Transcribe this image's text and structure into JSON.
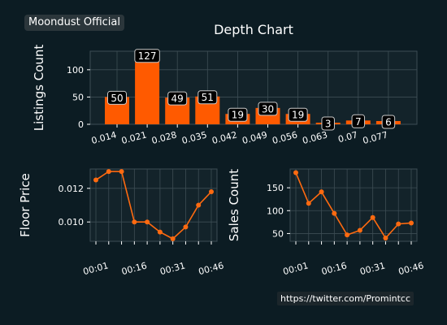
{
  "brand": {
    "label": "Moondust Official"
  },
  "footer": {
    "link": "https://twitter.com/Promintcc"
  },
  "colors": {
    "background": "#0c1c23",
    "panel": "#13232a",
    "accent": "#ff5a00",
    "line": "#ff6a10",
    "grid": "#3d4d54",
    "text": "#ffffff"
  },
  "chart_data": [
    {
      "type": "bar",
      "title": "Depth Chart",
      "ylabel": "Listings Count",
      "xlabel": "",
      "categories": [
        "0.014",
        "0.021",
        "0.028",
        "0.035",
        "0.042",
        "0.049",
        "0.056",
        "0.063",
        "0.07",
        "0.077"
      ],
      "values": [
        50,
        127,
        49,
        51,
        19,
        30,
        19,
        3,
        7,
        6
      ],
      "data_labels": [
        "50",
        "127",
        "49",
        "51",
        "19",
        "30",
        "19",
        "3",
        "7",
        "6"
      ],
      "yticks": [
        0,
        50,
        100
      ],
      "ylim": [
        0,
        134
      ],
      "grid": true
    },
    {
      "type": "line",
      "ylabel": "Floor Price",
      "xlabel": "",
      "x": [
        "00:01",
        "00:06",
        "00:11",
        "00:16",
        "00:21",
        "00:26",
        "00:31",
        "00:36",
        "00:41",
        "00:46"
      ],
      "xticks": [
        "00:01",
        "00:16",
        "00:31",
        "00:46"
      ],
      "values": [
        0.0125,
        0.013,
        0.013,
        0.01,
        0.01,
        0.0094,
        0.009,
        0.0097,
        0.011,
        0.0118
      ],
      "yticks": [
        0.01,
        0.012
      ],
      "ytick_labels": [
        "0.010",
        "0.012"
      ],
      "ylim": [
        0.00885,
        0.01315
      ],
      "grid": true
    },
    {
      "type": "line",
      "ylabel": "Sales Count",
      "xlabel": "",
      "x": [
        "00:01",
        "00:06",
        "00:11",
        "00:16",
        "00:21",
        "00:26",
        "00:31",
        "00:36",
        "00:41",
        "00:46"
      ],
      "xticks": [
        "00:01",
        "00:16",
        "00:31",
        "00:46"
      ],
      "values": [
        183,
        116,
        141,
        94,
        47,
        57,
        85,
        40,
        71,
        73
      ],
      "yticks": [
        50,
        100,
        150
      ],
      "ylim": [
        33,
        191
      ],
      "grid": true
    }
  ]
}
